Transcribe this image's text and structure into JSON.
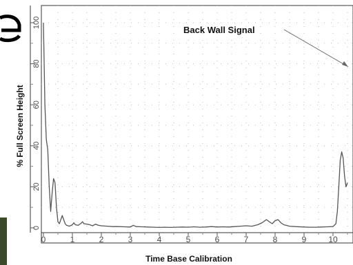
{
  "chart_data": {
    "type": "line",
    "xlabel": "Time Base Calibration",
    "ylabel": "% Full Screen Height",
    "annotation": "Back Wall Signal",
    "xlim": [
      0,
      10.5
    ],
    "ylim": [
      0,
      100
    ],
    "x_ticks": [
      "0",
      "1",
      "2",
      "3",
      "4",
      "5",
      "6",
      "7",
      "8",
      "9",
      "10"
    ],
    "y_ticks": [
      "0",
      "20",
      "40",
      "60",
      "80",
      "100"
    ],
    "grid": true,
    "line_color": "#555555",
    "series": [
      {
        "points": [
          [
            0.0,
            100
          ],
          [
            0.05,
            60
          ],
          [
            0.1,
            43
          ],
          [
            0.15,
            38
          ],
          [
            0.2,
            20
          ],
          [
            0.25,
            8
          ],
          [
            0.3,
            17
          ],
          [
            0.35,
            24
          ],
          [
            0.4,
            22
          ],
          [
            0.45,
            10
          ],
          [
            0.5,
            3
          ],
          [
            0.55,
            2
          ],
          [
            0.6,
            4
          ],
          [
            0.65,
            6
          ],
          [
            0.7,
            4
          ],
          [
            0.75,
            2
          ],
          [
            0.8,
            1.2
          ],
          [
            0.9,
            0.8
          ],
          [
            1.0,
            1.5
          ],
          [
            1.05,
            2.5
          ],
          [
            1.1,
            1.5
          ],
          [
            1.2,
            1.2
          ],
          [
            1.3,
            2.2
          ],
          [
            1.35,
            3
          ],
          [
            1.4,
            2
          ],
          [
            1.5,
            1.8
          ],
          [
            1.6,
            1.5
          ],
          [
            1.7,
            1
          ],
          [
            1.8,
            1.8
          ],
          [
            1.9,
            1.2
          ],
          [
            2.0,
            1
          ],
          [
            2.2,
            0.8
          ],
          [
            2.4,
            0.6
          ],
          [
            2.6,
            0.6
          ],
          [
            2.8,
            0.5
          ],
          [
            3.0,
            0.4
          ],
          [
            3.1,
            1.2
          ],
          [
            3.2,
            0.6
          ],
          [
            3.4,
            0.5
          ],
          [
            3.6,
            0.4
          ],
          [
            3.8,
            0.3
          ],
          [
            4.0,
            0.2
          ],
          [
            4.2,
            0.3
          ],
          [
            4.4,
            0.2
          ],
          [
            4.6,
            0.3
          ],
          [
            4.8,
            0.4
          ],
          [
            5.0,
            0.3
          ],
          [
            5.2,
            0.5
          ],
          [
            5.4,
            0.3
          ],
          [
            5.6,
            0.4
          ],
          [
            5.8,
            0.6
          ],
          [
            6.0,
            0.4
          ],
          [
            6.2,
            0.5
          ],
          [
            6.4,
            0.4
          ],
          [
            6.6,
            0.6
          ],
          [
            6.8,
            0.8
          ],
          [
            7.0,
            1
          ],
          [
            7.2,
            0.8
          ],
          [
            7.4,
            1.5
          ],
          [
            7.55,
            2.5
          ],
          [
            7.7,
            4
          ],
          [
            7.8,
            3
          ],
          [
            7.9,
            2
          ],
          [
            8.0,
            3.5
          ],
          [
            8.1,
            4
          ],
          [
            8.2,
            2.5
          ],
          [
            8.3,
            1.5
          ],
          [
            8.5,
            0.8
          ],
          [
            8.7,
            0.6
          ],
          [
            9.0,
            0.4
          ],
          [
            9.2,
            0.3
          ],
          [
            9.4,
            0.3
          ],
          [
            9.6,
            0.4
          ],
          [
            9.8,
            0.5
          ],
          [
            10.0,
            0.6
          ],
          [
            10.1,
            2
          ],
          [
            10.15,
            8
          ],
          [
            10.2,
            20
          ],
          [
            10.25,
            33
          ],
          [
            10.3,
            37
          ],
          [
            10.35,
            34
          ],
          [
            10.4,
            25
          ],
          [
            10.45,
            20
          ],
          [
            10.5,
            22
          ]
        ]
      }
    ]
  }
}
